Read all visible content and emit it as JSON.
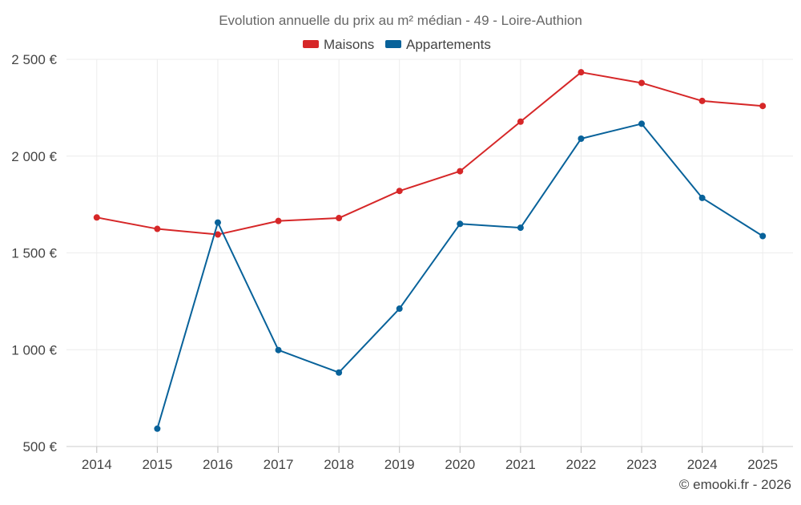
{
  "chart_data": {
    "type": "line",
    "title": "Evolution annuelle du prix au m² médian - 49 - Loire-Authion",
    "xlabel": "",
    "ylabel": "",
    "categories": [
      "2014",
      "2015",
      "2016",
      "2017",
      "2018",
      "2019",
      "2020",
      "2021",
      "2022",
      "2023",
      "2024",
      "2025"
    ],
    "ylim": [
      500,
      2500
    ],
    "yticks": [
      500,
      1000,
      1500,
      2000,
      2500
    ],
    "ytick_labels": [
      "500 €",
      "1 000 €",
      "1 500 €",
      "2 000 €",
      "2 500 €"
    ],
    "grid": true,
    "legend_position": "top-center",
    "series": [
      {
        "name": "Maisons",
        "color": "#d62728",
        "values": [
          1683,
          1624,
          1595,
          1665,
          1680,
          1820,
          1922,
          2178,
          2433,
          2378,
          2285,
          2259
        ]
      },
      {
        "name": "Appartements",
        "color": "#08629a",
        "values": [
          null,
          592,
          1657,
          998,
          882,
          1212,
          1650,
          1630,
          2090,
          2167,
          1784,
          1587
        ]
      }
    ]
  },
  "credit": "© emooki.fr - 2026"
}
